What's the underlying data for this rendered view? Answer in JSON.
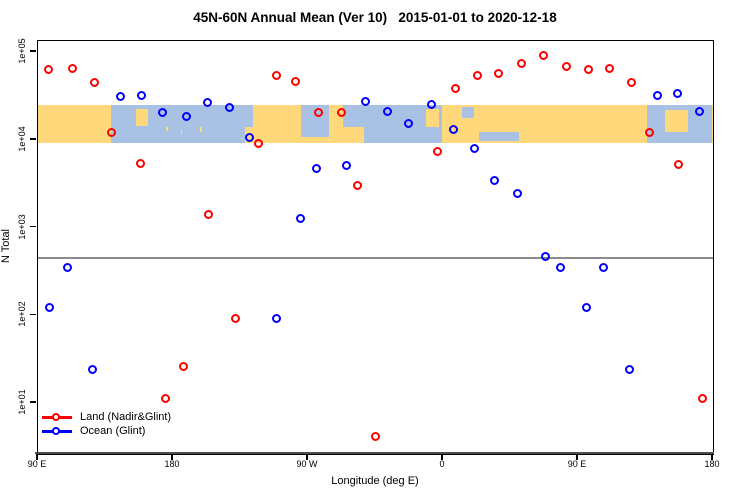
{
  "title": "45N-60N Annual Mean (Ver 10)   2015-01-01 to 2020-12-18",
  "colors": {
    "land_series": "#ff0000",
    "ocean_series": "#0000ff",
    "map_land": "#ffd87c",
    "map_ocean": "#a9c1e3",
    "reference_line": "#8c8c8c"
  },
  "legend": {
    "items": [
      {
        "label": "Land (Nadir&Glint)",
        "color": "#ff0000"
      },
      {
        "label": "Ocean (Glint)",
        "color": "#0000ff"
      }
    ]
  },
  "chart_data": {
    "type": "scatter",
    "title": "45N-60N Annual Mean (Ver 10)   2015-01-01 to 2020-12-18",
    "xlabel": "Longitude (deg E)",
    "ylabel": "N Total",
    "x_axis": {
      "note": "longitude axis wraps: spans 450 degrees starting at 90E",
      "range_deg": [
        90,
        540
      ],
      "ticks": [
        {
          "deg": 90,
          "label": "90 E"
        },
        {
          "deg": 180,
          "label": "180"
        },
        {
          "deg": 270,
          "label": "90 W"
        },
        {
          "deg": 360,
          "label": "0"
        },
        {
          "deg": 450,
          "label": "90 E"
        },
        {
          "deg": 540,
          "label": "180"
        }
      ]
    },
    "y_axis": {
      "scale": "log10",
      "range": [
        2.6,
        133000
      ],
      "ticks": [
        {
          "value": 100000,
          "label": "1e+05"
        },
        {
          "value": 10000,
          "label": "1e+04"
        },
        {
          "value": 1000,
          "label": "1e+03"
        },
        {
          "value": 100,
          "label": "1e+02"
        },
        {
          "value": 10,
          "label": "1e+01"
        }
      ]
    },
    "reference_line": {
      "value": 450
    },
    "map_band": {
      "note": "world-map strip of the 45N-60N latitude belt drawn across values ~9300 to ~25000",
      "value_range": [
        9300,
        25000
      ],
      "ocean_segments_deg": [
        [
          138.7,
          228,
          0,
          1
        ],
        [
          228,
          233,
          0,
          0.6
        ],
        [
          265.3,
          284,
          0,
          0.85
        ],
        [
          293,
          359.3,
          0,
          1
        ],
        [
          372.7,
          380.7,
          0.05,
          0.35
        ],
        [
          384,
          410.7,
          0.72,
          0.97
        ],
        [
          496,
          539.3,
          0,
          1
        ]
      ],
      "land_patches_deg": [
        [
          155.3,
          163.3,
          0.12,
          0.55
        ],
        [
          175,
          176.4,
          0.58,
          0.7
        ],
        [
          185,
          186.2,
          0.65,
          0.77
        ],
        [
          198,
          199.2,
          0.6,
          0.72
        ],
        [
          293,
          307,
          0.6,
          1
        ],
        [
          348.7,
          357.3,
          0.12,
          0.6
        ],
        [
          508,
          523,
          0.15,
          0.72
        ]
      ]
    },
    "series": [
      {
        "name": "Land (Nadir&Glint)",
        "color": "#ff0000",
        "points": [
          [
            97.5,
            62000
          ],
          [
            113,
            64000
          ],
          [
            128,
            45000
          ],
          [
            139.5,
            12000
          ],
          [
            158.5,
            5300
          ],
          [
            175,
            11
          ],
          [
            187.5,
            26
          ],
          [
            204,
            1400
          ],
          [
            222,
            90
          ],
          [
            237.3,
            8900
          ],
          [
            249.3,
            54000
          ],
          [
            262,
            46000
          ],
          [
            277.5,
            20000
          ],
          [
            292.7,
            20000
          ],
          [
            303,
            3000
          ],
          [
            315.3,
            4.1
          ],
          [
            356.5,
            7200
          ],
          [
            368.7,
            38000
          ],
          [
            383,
            53000
          ],
          [
            397.5,
            56000
          ],
          [
            412.5,
            74000
          ],
          [
            427,
            90000
          ],
          [
            442.5,
            68000
          ],
          [
            457,
            62000
          ],
          [
            471.5,
            65000
          ],
          [
            486,
            45000
          ],
          [
            498.2,
            12000
          ],
          [
            517.5,
            5200
          ],
          [
            533.5,
            11
          ]
        ]
      },
      {
        "name": "Ocean (Glint)",
        "color": "#0000ff",
        "points": [
          [
            97.8,
            120
          ],
          [
            110,
            350
          ],
          [
            126.7,
            24
          ],
          [
            145,
            31000
          ],
          [
            159,
            32000
          ],
          [
            173,
            20000
          ],
          [
            189,
            18000
          ],
          [
            203,
            26000
          ],
          [
            218,
            23000
          ],
          [
            231,
            10500
          ],
          [
            249.5,
            91
          ],
          [
            265.5,
            1240
          ],
          [
            276,
            4700
          ],
          [
            295.8,
            5000
          ],
          [
            308.7,
            27000
          ],
          [
            323,
            21000
          ],
          [
            337.5,
            15000
          ],
          [
            352.5,
            25000
          ],
          [
            367,
            13000
          ],
          [
            381,
            7900
          ],
          [
            394.7,
            3400
          ],
          [
            410,
            2400
          ],
          [
            428.7,
            465
          ],
          [
            438.7,
            350
          ],
          [
            456,
            120
          ],
          [
            467.5,
            350
          ],
          [
            484.7,
            24
          ],
          [
            503,
            32000
          ],
          [
            516.5,
            33000
          ],
          [
            531.5,
            21000
          ]
        ]
      }
    ],
    "legend_position": "bottom-left"
  }
}
